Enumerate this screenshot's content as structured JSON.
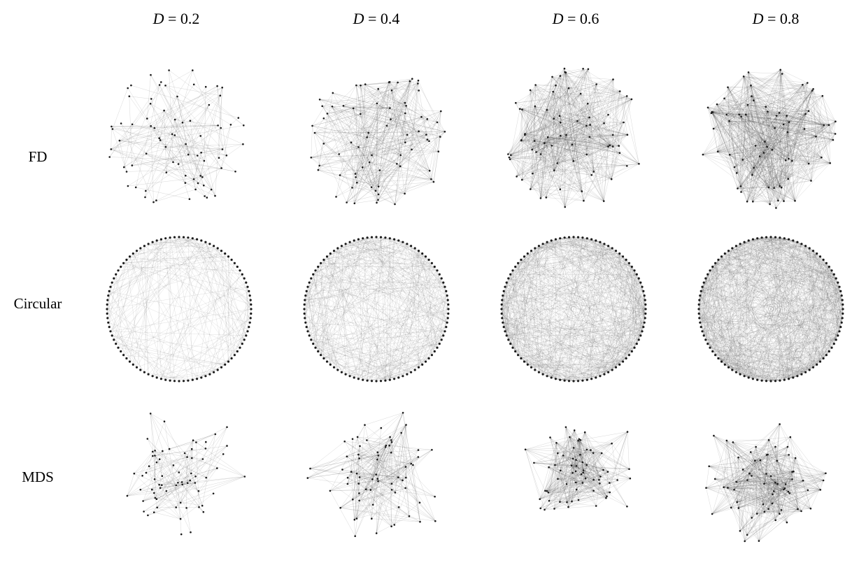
{
  "columns": [
    {
      "var": "D",
      "eq": " = ",
      "value": "0.2",
      "density": 0.2
    },
    {
      "var": "D",
      "eq": " = ",
      "value": "0.4",
      "density": 0.4
    },
    {
      "var": "D",
      "eq": " = ",
      "value": "0.6",
      "density": 0.6
    },
    {
      "var": "D",
      "eq": " = ",
      "value": "0.8",
      "density": 0.8
    }
  ],
  "rows": [
    {
      "label": "FD",
      "layout": "force-directed"
    },
    {
      "label": "Circular",
      "layout": "circular"
    },
    {
      "label": "MDS",
      "layout": "mds"
    }
  ],
  "style": {
    "background": "#ffffff",
    "node_color": "#1a1a1a",
    "edge_color": "#333333"
  }
}
